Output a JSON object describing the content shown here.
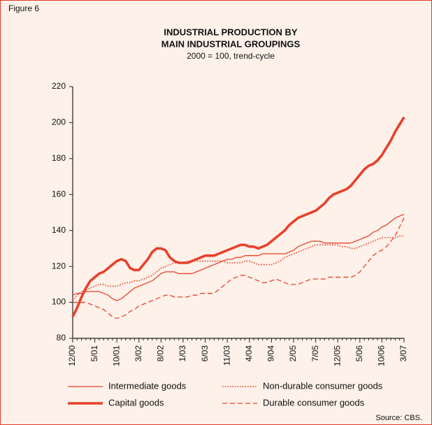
{
  "chart_data": {
    "type": "line",
    "figure_label": "Figure 6",
    "title": [
      "INDUSTRIAL PRODUCTION BY",
      "MAIN INDUSTRIAL GROUPINGS"
    ],
    "subtitle": "2000 = 100, trend-cycle",
    "source": "Source: CBS.",
    "categories": [
      "12/00",
      null,
      null,
      null,
      null,
      "5/01",
      null,
      null,
      null,
      null,
      "10/01",
      null,
      null,
      null,
      null,
      "3/02",
      null,
      null,
      null,
      null,
      "8/02",
      null,
      null,
      null,
      null,
      "1/03",
      null,
      null,
      null,
      null,
      "6/03",
      null,
      null,
      null,
      null,
      "11/03",
      null,
      null,
      null,
      null,
      "4/04",
      null,
      null,
      null,
      null,
      "9/04",
      null,
      null,
      null,
      null,
      "2/05",
      null,
      null,
      null,
      null,
      "7/05",
      null,
      null,
      null,
      null,
      "12/05",
      null,
      null,
      null,
      null,
      "5/06",
      null,
      null,
      null,
      null,
      "10/06",
      null,
      null,
      null,
      null,
      "3/07"
    ],
    "ylim": [
      80,
      220
    ],
    "yticks": [
      80,
      100,
      120,
      140,
      160,
      180,
      200,
      220
    ],
    "grid": false,
    "series": [
      {
        "name": "Intermediate goods",
        "color": "#e8412c",
        "linestyle": "solid",
        "linewidth": 1.3,
        "values": [
          104,
          105,
          105,
          106,
          106,
          106,
          106,
          105,
          104,
          102,
          101,
          102,
          104,
          106,
          108,
          109,
          110,
          111,
          112,
          114,
          116,
          117,
          117,
          117,
          116,
          116,
          116,
          116,
          117,
          118,
          119,
          120,
          121,
          122,
          123,
          124,
          124,
          125,
          125,
          126,
          126,
          126,
          126,
          127,
          127,
          127,
          127,
          127,
          127,
          128,
          129,
          131,
          132,
          133,
          134,
          134,
          134,
          133,
          133,
          133,
          133,
          133,
          133,
          133,
          134,
          135,
          136,
          137,
          139,
          140,
          142,
          143,
          145,
          147,
          148,
          149
        ]
      },
      {
        "name": "Capital goods",
        "color": "#e8412c",
        "linestyle": "solid",
        "linewidth": 3.6,
        "values": [
          92,
          97,
          103,
          108,
          112,
          114,
          116,
          117,
          119,
          121,
          123,
          124,
          123,
          119,
          118,
          118,
          121,
          124,
          128,
          130,
          130,
          129,
          125,
          123,
          122,
          122,
          122,
          123,
          124,
          125,
          126,
          126,
          126,
          127,
          128,
          129,
          130,
          131,
          132,
          132,
          131,
          131,
          130,
          131,
          132,
          134,
          136,
          138,
          140,
          143,
          145,
          147,
          148,
          149,
          150,
          151,
          153,
          155,
          158,
          160,
          161,
          162,
          163,
          165,
          168,
          171,
          174,
          176,
          177,
          179,
          182,
          186,
          190,
          195,
          199,
          203
        ]
      },
      {
        "name": "Non-durable consumer goods",
        "color": "#e8412c",
        "linestyle": "dotted",
        "linewidth": 1.6,
        "values": [
          101,
          104,
          106,
          107,
          108,
          109,
          110,
          110,
          109,
          109,
          109,
          110,
          111,
          111,
          112,
          112,
          113,
          114,
          115,
          117,
          119,
          120,
          121,
          122,
          122,
          122,
          123,
          123,
          123,
          123,
          123,
          123,
          123,
          123,
          123,
          122,
          122,
          122,
          122,
          123,
          123,
          122,
          121,
          121,
          121,
          121,
          122,
          123,
          125,
          126,
          127,
          128,
          129,
          130,
          131,
          132,
          132,
          132,
          132,
          132,
          132,
          131,
          131,
          130,
          130,
          131,
          132,
          133,
          134,
          135,
          136,
          136,
          136,
          136,
          137,
          137
        ]
      },
      {
        "name": "Durable consumer goods",
        "color": "#e8412c",
        "linestyle": "dashed",
        "linewidth": 1.3,
        "values": [
          100,
          100,
          100,
          100,
          99,
          98,
          97,
          96,
          94,
          92,
          91,
          92,
          93,
          95,
          96,
          98,
          99,
          100,
          101,
          102,
          103,
          104,
          104,
          103,
          103,
          103,
          103,
          104,
          104,
          105,
          105,
          105,
          105,
          107,
          109,
          111,
          113,
          114,
          115,
          115,
          114,
          113,
          112,
          111,
          111,
          112,
          113,
          112,
          111,
          110,
          110,
          110,
          111,
          112,
          113,
          113,
          113,
          113,
          114,
          114,
          114,
          114,
          114,
          114,
          115,
          117,
          120,
          123,
          126,
          128,
          129,
          131,
          134,
          137,
          142,
          147
        ]
      }
    ]
  }
}
